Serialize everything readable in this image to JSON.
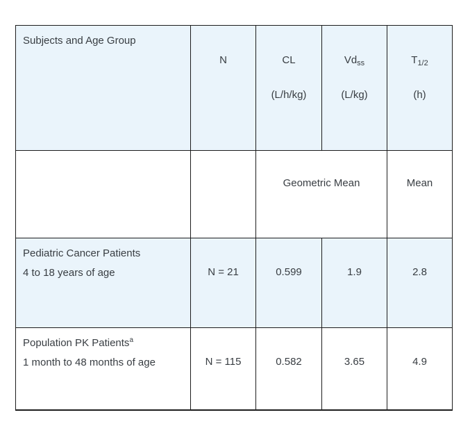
{
  "table": {
    "header": {
      "subjects_label": "Subjects and Age Group",
      "n": {
        "symbol": "N",
        "unit": ""
      },
      "cl": {
        "symbol": "CL",
        "unit": "(L/h/kg)"
      },
      "vd": {
        "symbol": "Vd",
        "sub": "ss",
        "unit": "(L/kg)"
      },
      "t12": {
        "symbol": "T",
        "sub": "1/2",
        "unit": "(h)"
      }
    },
    "stat_labels": {
      "geometric_mean": "Geometric Mean",
      "mean": "Mean"
    },
    "rows": [
      {
        "line1": "Pediatric Cancer Patients",
        "sup": "",
        "line2": "4 to 18 years of age",
        "n": "N = 21",
        "cl": "0.599",
        "vd": "1.9",
        "t12": "2.8"
      },
      {
        "line1": "Population PK Patients",
        "sup": "a",
        "line2": "1 month to 48 months of age",
        "n": "N = 115",
        "cl": "0.582",
        "vd": "3.65",
        "t12": "4.9"
      }
    ],
    "colors": {
      "highlight_bg": "#eaf4fb",
      "border": "#1c1c1c",
      "text": "#383d42",
      "page_bg": "#ffffff"
    }
  }
}
